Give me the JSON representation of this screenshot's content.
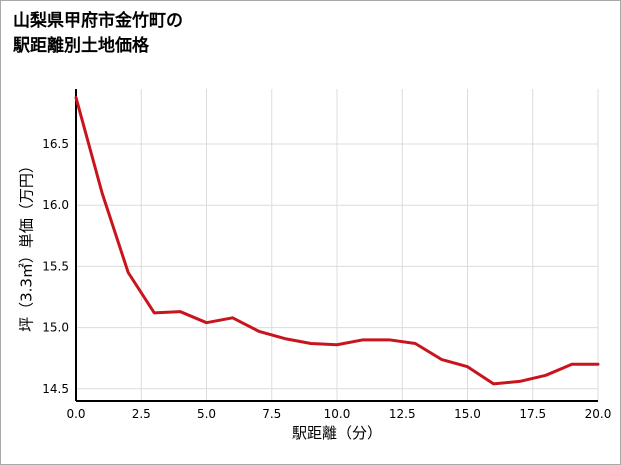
{
  "header": {
    "title_line1": "山梨県甲府市金竹町の",
    "title_line2": "駅距離別土地価格"
  },
  "chart_data": {
    "type": "line",
    "title": "山梨県甲府市金竹町の駅距離別土地価格",
    "xlabel": "駅距離（分）",
    "ylabel": "坪（3.3㎡）単価（万円）",
    "x": [
      0,
      1,
      2,
      3,
      4,
      5,
      6,
      7,
      8,
      9,
      10,
      11,
      12,
      13,
      14,
      15,
      16,
      17,
      18,
      19,
      20
    ],
    "values": [
      16.88,
      16.1,
      15.45,
      15.12,
      15.13,
      15.04,
      15.08,
      14.97,
      14.91,
      14.87,
      14.86,
      14.9,
      14.9,
      14.87,
      14.74,
      14.68,
      14.54,
      14.56,
      14.61,
      14.7,
      14.7
    ],
    "xlim": [
      0,
      20
    ],
    "ylim": [
      14.4,
      16.95
    ],
    "x_ticks": [
      0,
      2.5,
      5,
      7.5,
      10,
      12.5,
      15,
      17.5,
      20
    ],
    "x_tick_labels": [
      "0.0",
      "2.5",
      "5.0",
      "7.5",
      "10.0",
      "12.5",
      "15.0",
      "17.5",
      "20.0"
    ],
    "y_ticks": [
      14.5,
      15.0,
      15.5,
      16.0,
      16.5
    ],
    "y_tick_labels": [
      "14.5",
      "15.0",
      "15.5",
      "16.0",
      "16.5"
    ],
    "grid": true,
    "legend": "none",
    "line_color": "#c9141e",
    "grid_color": "#dcdcdc",
    "axis_color": "#000000",
    "background": "#ffffff"
  }
}
